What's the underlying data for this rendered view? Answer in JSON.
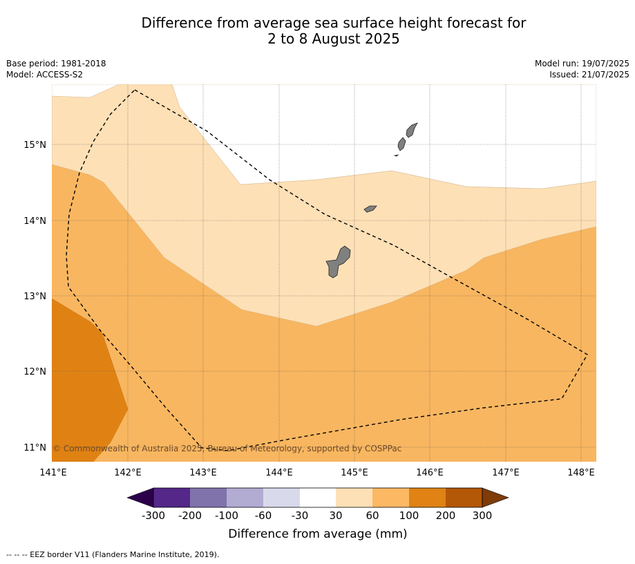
{
  "title": {
    "line1": "Difference from average sea surface height forecast for",
    "line2": "2 to 8 August 2025"
  },
  "meta_left": {
    "base_period": "Base period: 1981-2018",
    "model": "Model: ACCESS-S2"
  },
  "meta_right": {
    "model_run": "Model run: 19/07/2025",
    "issued": "Issued: 21/07/2025"
  },
  "map": {
    "lon_range": [
      141.0,
      148.2
    ],
    "lat_range": [
      10.8,
      15.8
    ],
    "lon_ticks": [
      "141°E",
      "142°E",
      "143°E",
      "144°E",
      "145°E",
      "146°E",
      "147°E",
      "148°E"
    ],
    "lat_ticks": [
      "11°N",
      "12°N",
      "13°N",
      "14°N",
      "15°N"
    ],
    "copyright": "© Commonwealth of Australia 2025, Bureau of Meteorology, supported by COSPPac",
    "colors": {
      "band_30_60": "#fde0b6",
      "band_60_100": "#f8b660",
      "band_100_200": "#e08213",
      "land": "#808080",
      "grid": "#555555"
    }
  },
  "colorbar": {
    "title": "Difference from average (mm)",
    "tick_labels": [
      "-300",
      "-200",
      "-100",
      "-60",
      "-30",
      "30",
      "60",
      "100",
      "200",
      "300"
    ],
    "colors": [
      "#2d004b",
      "#542788",
      "#8073ac",
      "#b2abd2",
      "#d8daeb",
      "#ffffff",
      "#fee0b6",
      "#fdb863",
      "#e08214",
      "#b35806",
      "#7f3b08"
    ]
  },
  "footnote": "--  --  -- EEZ border V11 (Flanders Marine Institute, 2019)."
}
